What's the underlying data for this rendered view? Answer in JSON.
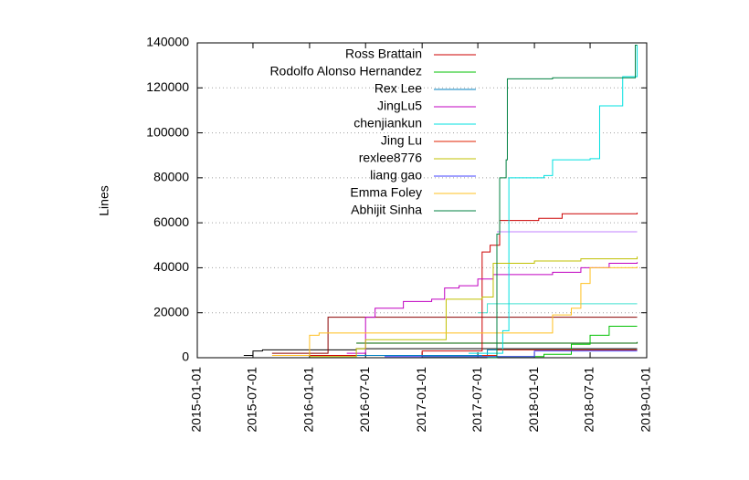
{
  "chart_data": {
    "type": "line",
    "step": true,
    "ylabel": "Lines",
    "xlim": [
      "2015-01-01",
      "2019-01-01"
    ],
    "xticks": [
      "2015-01-01",
      "2015-07-01",
      "2016-01-01",
      "2016-07-01",
      "2017-01-01",
      "2017-07-01",
      "2018-01-01",
      "2018-07-01",
      "2019-01-01"
    ],
    "ylim": [
      0,
      140000
    ],
    "yticks": [
      0,
      20000,
      40000,
      60000,
      80000,
      100000,
      120000,
      140000
    ],
    "grid": true,
    "legend": "top-left",
    "series": [
      {
        "color": "#000000",
        "x": [
          "2015-06-01",
          "2015-07-01",
          "2015-08-01",
          "2016-06-01",
          "2018-12-01"
        ],
        "values": [
          1000,
          3000,
          3500,
          4000,
          4000
        ]
      },
      {
        "color": "#8b0000",
        "x": [
          "2015-09-01",
          "2016-03-01",
          "2018-12-01"
        ],
        "values": [
          2000,
          18000,
          18000
        ]
      },
      {
        "color": "#006400",
        "x": [
          "2016-06-01",
          "2018-12-01"
        ],
        "values": [
          6500,
          7000
        ]
      },
      {
        "color": "#40e0d0",
        "x": [
          "2017-07-01",
          "2017-08-01",
          "2018-12-01"
        ],
        "values": [
          20000,
          24000,
          24000
        ]
      },
      {
        "color": "#c080ff",
        "x": [
          "2017-09-01",
          "2018-12-01"
        ],
        "values": [
          56000,
          56000
        ]
      },
      {
        "name": "Ross Brattain",
        "color": "#cc0000",
        "x": [
          "2015-12-01",
          "2017-01-01",
          "2017-07-15",
          "2017-08-10",
          "2017-09-10",
          "2018-01-15",
          "2018-04-01",
          "2018-12-01"
        ],
        "values": [
          1000,
          3000,
          47000,
          50000,
          61000,
          62000,
          64000,
          64500
        ]
      },
      {
        "name": "Rodolfo Alonso Hernandez",
        "color": "#00c000",
        "x": [
          "2017-01-01",
          "2018-02-01",
          "2018-05-01",
          "2018-07-01",
          "2018-09-01",
          "2018-12-01"
        ],
        "values": [
          500,
          1500,
          6000,
          10000,
          14000,
          14000
        ]
      },
      {
        "name": "Rex Lee",
        "color": "#0080c0",
        "x": [
          "2016-06-01",
          "2017-08-01",
          "2018-12-01"
        ],
        "values": [
          1000,
          3500,
          3500
        ]
      },
      {
        "name": "JingLu5",
        "color": "#c000c0",
        "x": [
          "2016-05-01",
          "2016-07-01",
          "2016-08-01",
          "2016-11-01",
          "2017-02-01",
          "2017-03-15",
          "2017-05-01",
          "2017-07-01",
          "2017-08-20",
          "2018-03-01",
          "2018-06-01",
          "2018-09-01",
          "2018-12-01"
        ],
        "values": [
          2000,
          18000,
          22000,
          25000,
          26000,
          31000,
          32000,
          35000,
          37000,
          38000,
          40000,
          42000,
          42500
        ]
      },
      {
        "name": "chenjiankun",
        "color": "#00e0e0",
        "x": [
          "2017-06-01",
          "2017-09-20",
          "2017-10-10",
          "2018-02-01",
          "2018-03-01",
          "2018-07-01",
          "2018-08-01",
          "2018-10-15",
          "2018-12-01"
        ],
        "values": [
          2000,
          12000,
          80000,
          81000,
          88000,
          88500,
          112000,
          125000,
          139000
        ]
      },
      {
        "name": "Jing Lu",
        "color": "#e02000",
        "x": [
          "2017-07-15",
          "2017-09-01",
          "2018-12-01"
        ],
        "values": [
          1000,
          3500,
          3500
        ]
      },
      {
        "name": "rexlee8776",
        "color": "#c0c000",
        "x": [
          "2016-01-01",
          "2016-06-01",
          "2016-07-01",
          "2017-03-20",
          "2017-07-15",
          "2017-08-20",
          "2018-01-01",
          "2018-06-01",
          "2018-12-01"
        ],
        "values": [
          500,
          4000,
          8000,
          26000,
          27000,
          42000,
          43000,
          44000,
          45000
        ]
      },
      {
        "name": "liang gao",
        "color": "#4040ff",
        "x": [
          "2016-09-01",
          "2018-01-01",
          "2018-12-01"
        ],
        "values": [
          500,
          3000,
          3000
        ]
      },
      {
        "name": "Emma Foley",
        "color": "#ffc020",
        "x": [
          "2015-09-01",
          "2016-01-01",
          "2016-02-01",
          "2018-03-01",
          "2018-05-01",
          "2018-06-01",
          "2018-07-01",
          "2018-12-01"
        ],
        "values": [
          1000,
          10000,
          11000,
          19000,
          22000,
          33000,
          40000,
          40500
        ]
      },
      {
        "name": "Abhijit Sinha",
        "color": "#008040",
        "x": [
          "2017-08-01",
          "2017-09-01",
          "2017-09-10",
          "2017-10-01",
          "2017-10-05",
          "2018-03-01",
          "2018-11-25",
          "2018-12-01"
        ],
        "values": [
          0,
          55000,
          80000,
          88000,
          124000,
          124500,
          139000,
          139000
        ]
      }
    ]
  }
}
